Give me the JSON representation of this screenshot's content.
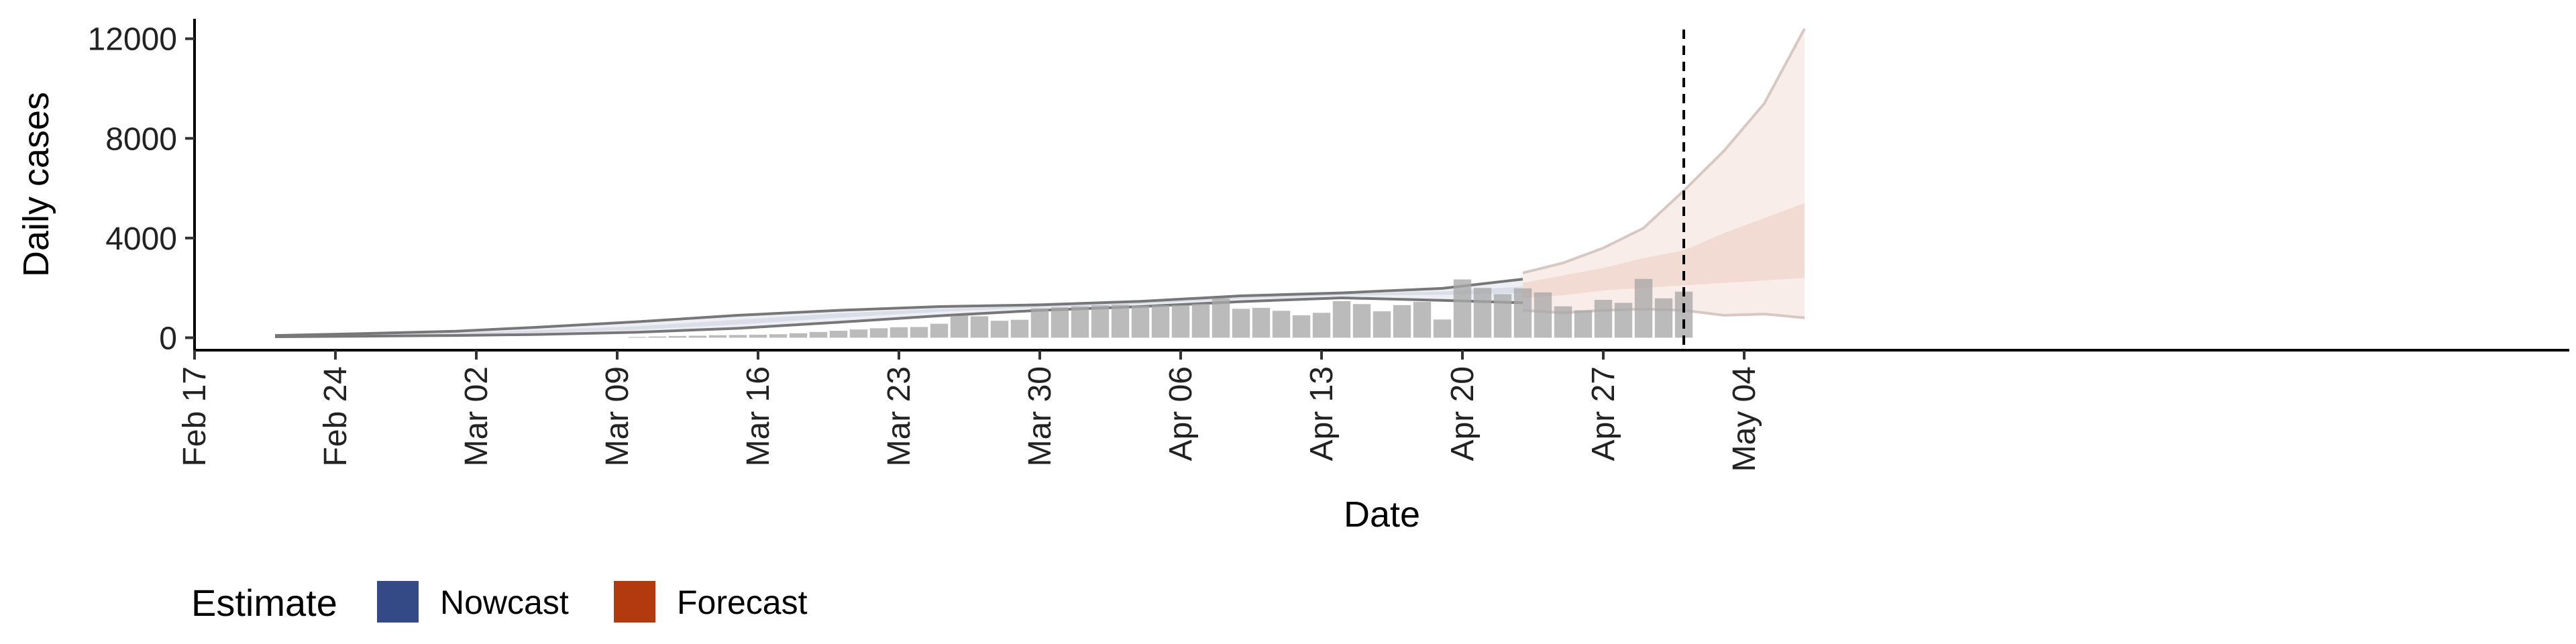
{
  "chart_data": {
    "type": "bar",
    "xlabel": "Date",
    "ylabel": "Daily cases",
    "ylim": [
      -500,
      12800
    ],
    "y_ticks": [
      0,
      4000,
      8000,
      12000
    ],
    "y_tick_labels": [
      "0",
      "4000",
      "8000",
      "12000"
    ],
    "x_ticks": [
      "2020-02-17",
      "2020-02-24",
      "2020-03-02",
      "2020-03-09",
      "2020-03-16",
      "2020-03-23",
      "2020-03-30",
      "2020-04-06",
      "2020-04-13",
      "2020-04-20",
      "2020-04-27",
      "2020-05-04"
    ],
    "x_tick_labels": [
      "Feb 17",
      "Feb 24",
      "Mar 02",
      "Mar 09",
      "Mar 16",
      "Mar 23",
      "Mar 30",
      "Apr 06",
      "Apr 13",
      "Apr 20",
      "Apr 27",
      "May 04"
    ],
    "xlim": [
      "2020-02-17",
      "2020-05-10"
    ],
    "forecast_start_date": "2020-05-01",
    "observed_cases": {
      "dates": [
        "2020-03-10",
        "2020-03-11",
        "2020-03-12",
        "2020-03-13",
        "2020-03-14",
        "2020-03-15",
        "2020-03-16",
        "2020-03-17",
        "2020-03-18",
        "2020-03-19",
        "2020-03-20",
        "2020-03-21",
        "2020-03-22",
        "2020-03-23",
        "2020-03-24",
        "2020-03-25",
        "2020-03-26",
        "2020-03-27",
        "2020-03-28",
        "2020-03-29",
        "2020-03-30",
        "2020-03-31",
        "2020-04-01",
        "2020-04-02",
        "2020-04-03",
        "2020-04-04",
        "2020-04-05",
        "2020-04-06",
        "2020-04-07",
        "2020-04-08",
        "2020-04-09",
        "2020-04-10",
        "2020-04-11",
        "2020-04-12",
        "2020-04-13",
        "2020-04-14",
        "2020-04-15",
        "2020-04-16",
        "2020-04-17",
        "2020-04-18",
        "2020-04-19",
        "2020-04-20",
        "2020-04-21",
        "2020-04-22",
        "2020-04-23",
        "2020-04-24",
        "2020-04-25",
        "2020-04-26",
        "2020-04-27",
        "2020-04-28",
        "2020-04-29",
        "2020-04-30",
        "2020-05-01"
      ],
      "values": [
        30,
        50,
        70,
        80,
        100,
        110,
        120,
        140,
        180,
        230,
        280,
        330,
        380,
        420,
        430,
        560,
        880,
        860,
        680,
        720,
        1180,
        1220,
        1260,
        1300,
        1320,
        1280,
        1300,
        1310,
        1360,
        1580,
        1160,
        1200,
        1080,
        900,
        1000,
        1470,
        1350,
        1060,
        1310,
        1440,
        730,
        2340,
        2000,
        1750,
        1980,
        1820,
        1260,
        1100,
        1520,
        1400,
        2360,
        1580,
        1850
      ]
    },
    "series": [
      {
        "name": "Nowcast",
        "color": "#344A86",
        "dates": [
          "2020-02-21",
          "2020-02-25",
          "2020-03-01",
          "2020-03-05",
          "2020-03-10",
          "2020-03-15",
          "2020-03-20",
          "2020-03-25",
          "2020-03-30",
          "2020-04-04",
          "2020-04-09",
          "2020-04-14",
          "2020-04-19",
          "2020-04-23"
        ],
        "lower": [
          40,
          60,
          90,
          130,
          220,
          380,
          620,
          880,
          1100,
          1250,
          1450,
          1600,
          1500,
          1400
        ],
        "upper": [
          90,
          160,
          260,
          420,
          640,
          900,
          1100,
          1250,
          1320,
          1460,
          1680,
          1800,
          1980,
          2350
        ],
        "inner_lower": [
          60,
          90,
          140,
          200,
          320,
          530,
          800,
          1040,
          1220,
          1350,
          1560,
          1700,
          1720,
          1800
        ],
        "inner_upper": [
          70,
          120,
          190,
          300,
          460,
          720,
          980,
          1160,
          1270,
          1400,
          1620,
          1760,
          1860,
          2050
        ]
      },
      {
        "name": "Forecast",
        "color": "#B33A0F",
        "dates": [
          "2020-04-23",
          "2020-04-25",
          "2020-04-27",
          "2020-04-29",
          "2020-05-01",
          "2020-05-03",
          "2020-05-05",
          "2020-05-07"
        ],
        "lower": [
          1100,
          1000,
          1100,
          1150,
          1100,
          900,
          950,
          800
        ],
        "upper": [
          2600,
          3000,
          3600,
          4400,
          5900,
          7500,
          9400,
          12400
        ],
        "inner_lower": [
          1600,
          1700,
          1900,
          2000,
          2100,
          2200,
          2300,
          2400
        ],
        "inner_upper": [
          2200,
          2500,
          2800,
          3200,
          3500,
          4200,
          4800,
          5400
        ]
      }
    ],
    "legend": {
      "title": "Estimate",
      "position": "bottom-left",
      "items": [
        {
          "label": "Nowcast",
          "color": "#344A86"
        },
        {
          "label": "Forecast",
          "color": "#B33A0F"
        }
      ]
    },
    "grid": false
  }
}
